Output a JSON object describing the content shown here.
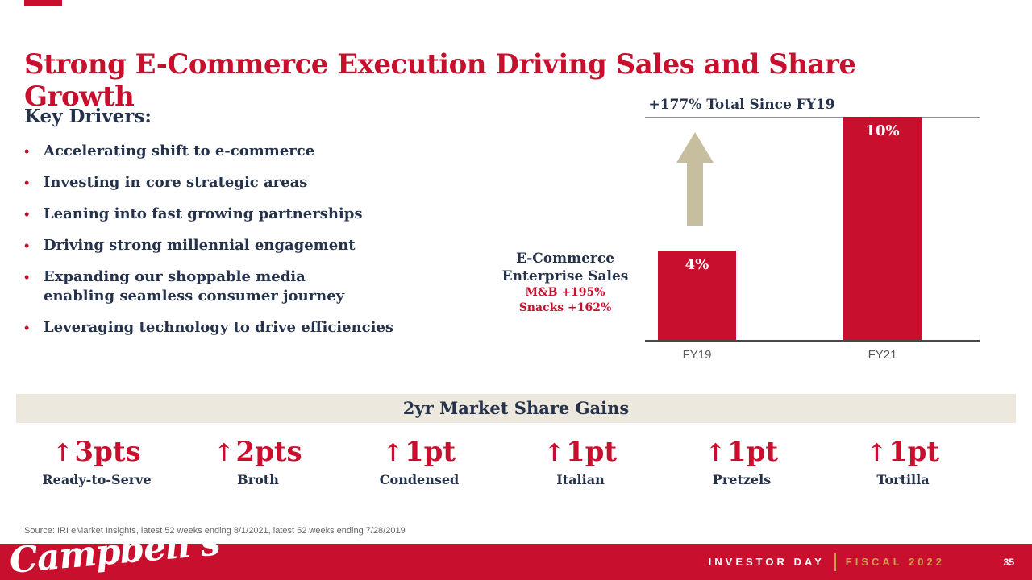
{
  "colors": {
    "red": "#C8102E",
    "navy": "#25324B",
    "tan": "#C7BD9F",
    "band_bg": "#ECE8DD",
    "gold": "#D29F4C"
  },
  "icons": {
    "bullet": "•",
    "up_arrow": "↑"
  },
  "slide": {
    "title": "Strong E-Commerce Execution Driving Sales and Share Growth",
    "key_drivers": {
      "heading": "Key Drivers:",
      "items": [
        "Accelerating shift to e-commerce",
        "Investing in core strategic areas",
        "Leaning into fast growing partnerships",
        "Driving strong millennial engagement",
        "Expanding our shoppable media enabling seamless consumer journey",
        "Leveraging technology to drive efficiencies"
      ]
    },
    "source": "Source: IRI eMarket Insights, latest 52 weeks ending 8/1/2021, latest 52 weeks ending 7/28/2019"
  },
  "chart_data": {
    "type": "bar",
    "title": "+177% Total Since FY19",
    "categories": [
      "FY19",
      "FY21"
    ],
    "values": [
      4,
      10
    ],
    "value_labels": [
      "4%",
      "10%"
    ],
    "ylim": [
      0,
      10
    ],
    "bar_color": "#C8102E",
    "left_label_lines": [
      "E-Commerce",
      "Enterprise Sales"
    ],
    "sub_labels": [
      "M&B +195%",
      "Snacks +162%"
    ],
    "grid": "top-reference-line-only",
    "legend": "none"
  },
  "market_share": {
    "heading": "2yr Market Share Gains",
    "gains": [
      {
        "value": "3pts",
        "label": "Ready-to-Serve"
      },
      {
        "value": "2pts",
        "label": "Broth"
      },
      {
        "value": "1pt",
        "label": "Condensed"
      },
      {
        "value": "1pt",
        "label": "Italian"
      },
      {
        "value": "1pt",
        "label": "Pretzels"
      },
      {
        "value": "1pt",
        "label": "Tortilla"
      }
    ]
  },
  "footer": {
    "logo_text": "Campbell's",
    "event_label": "INVESTOR DAY",
    "fiscal_label": "FISCAL 2022",
    "page_number": "35"
  }
}
